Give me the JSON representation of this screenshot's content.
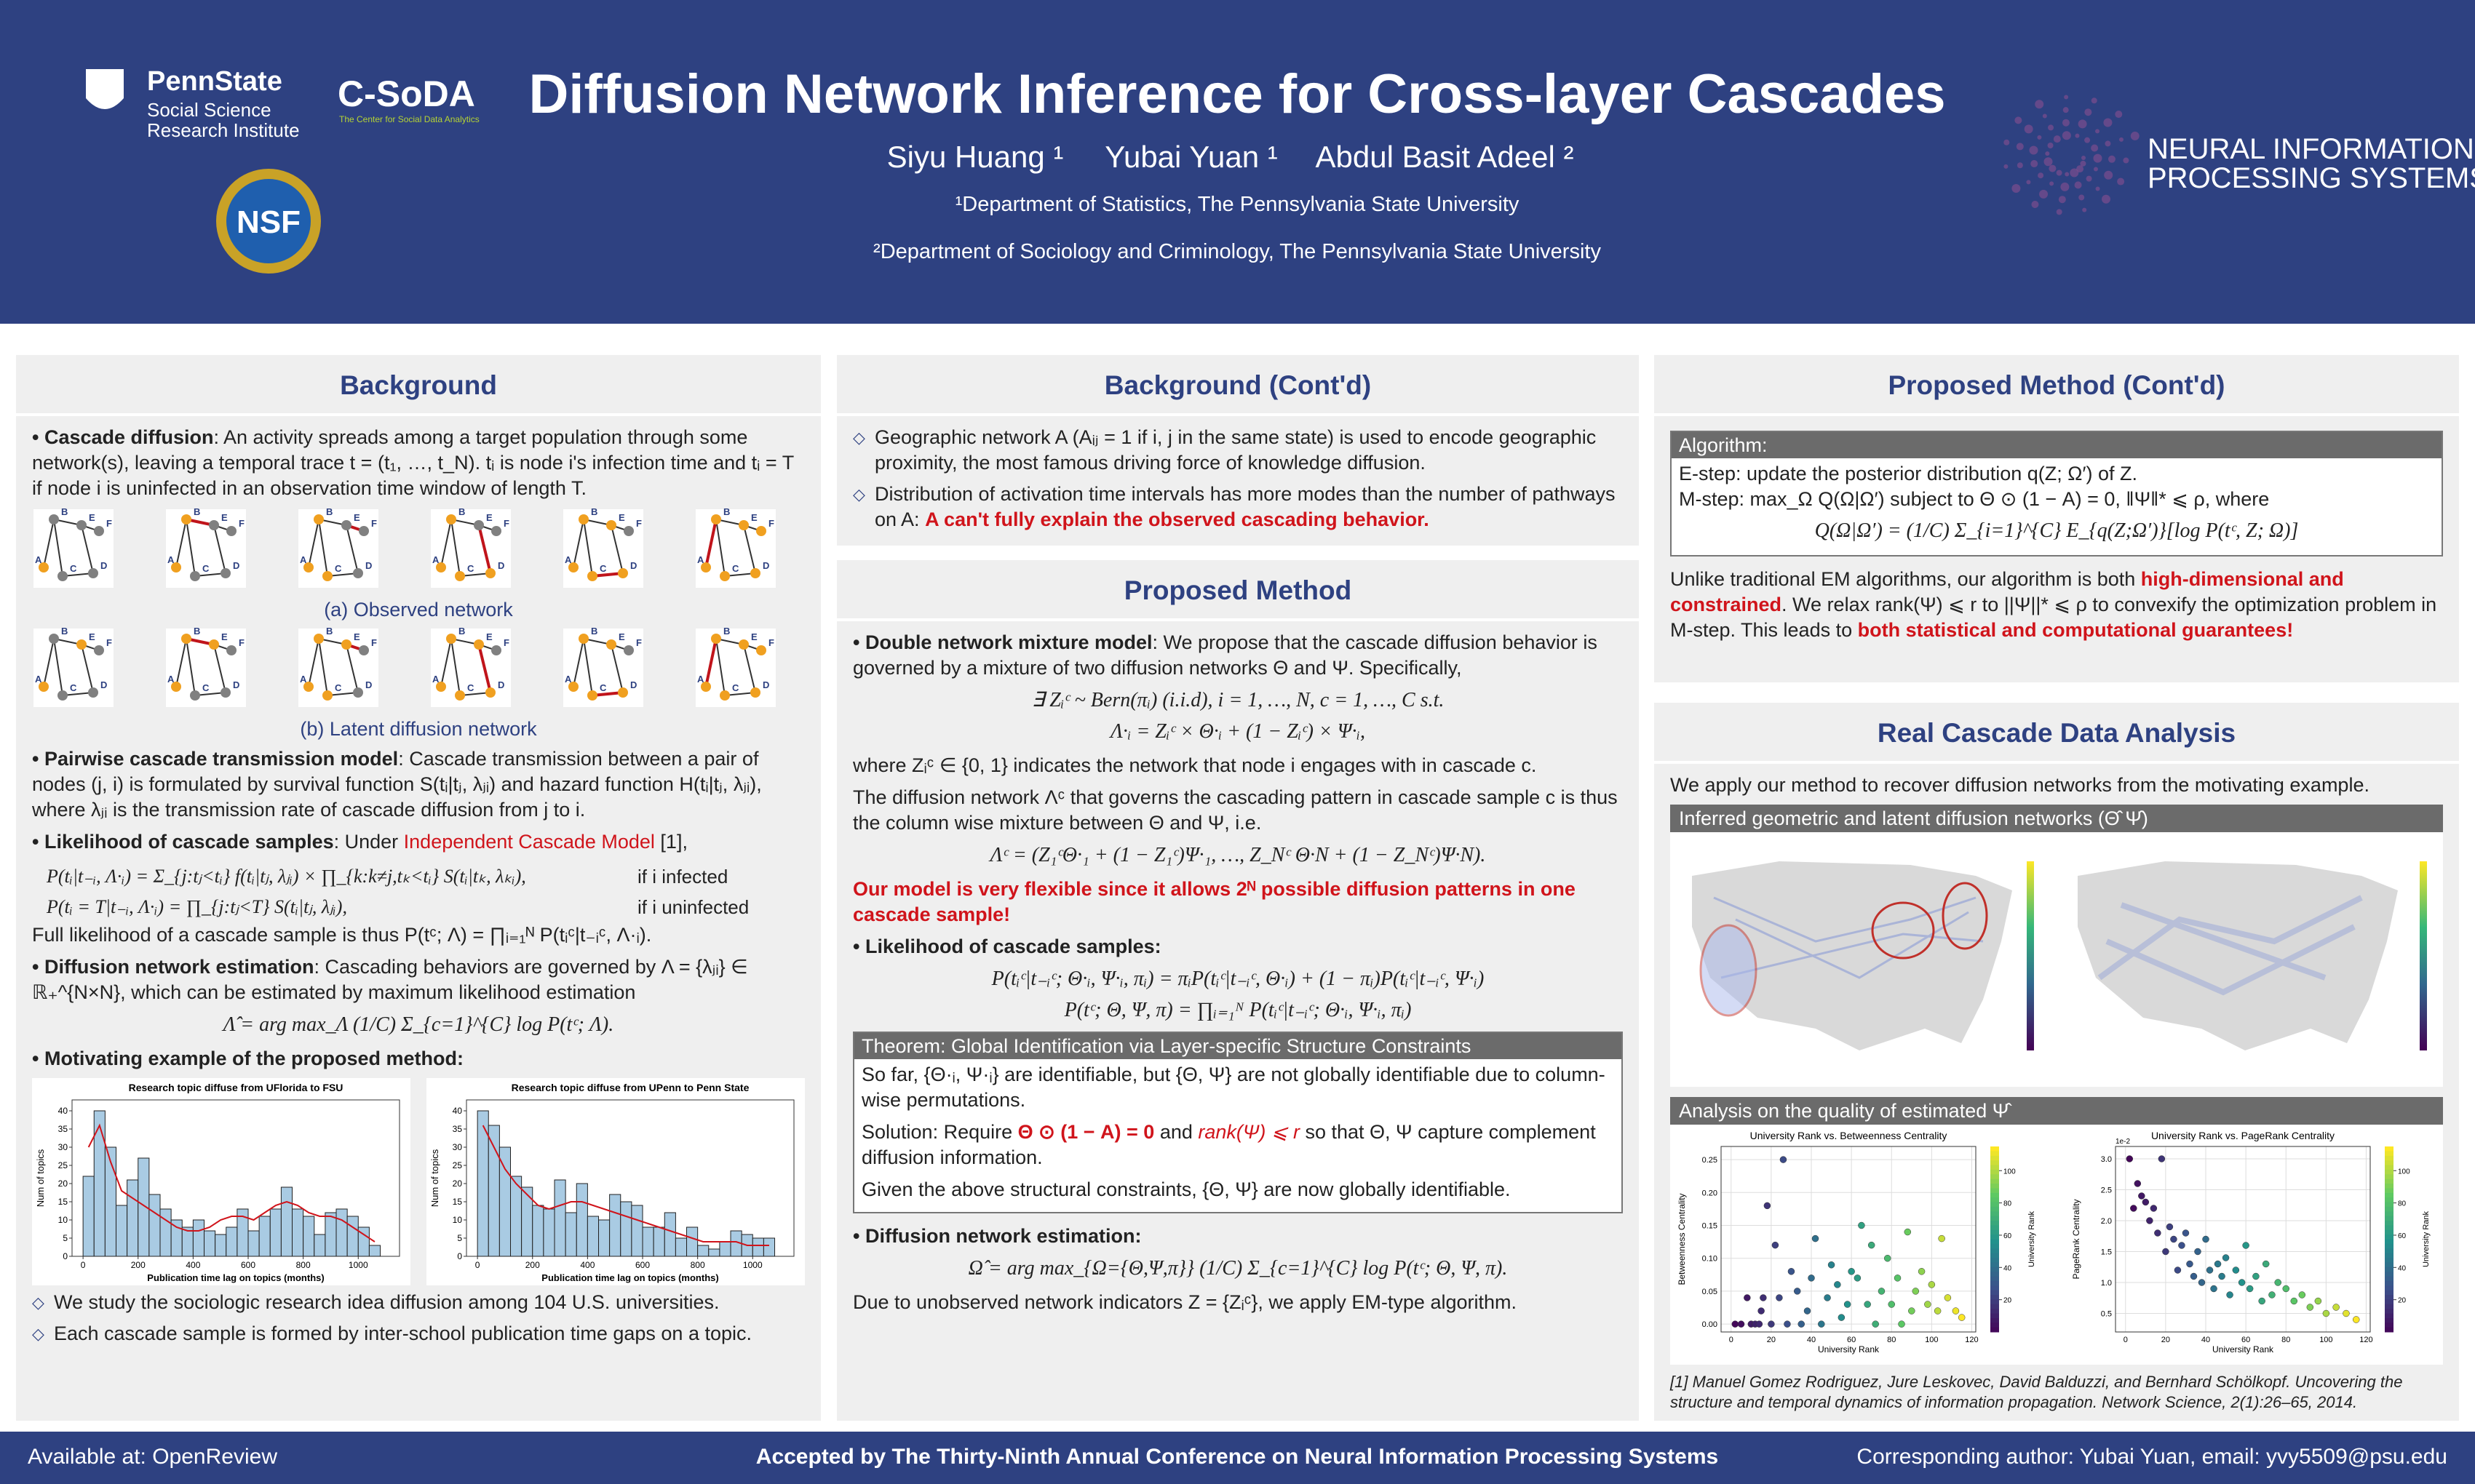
{
  "header": {
    "title": "Diffusion Network Inference for Cross-layer Cascades",
    "authors": [
      "Siyu Huang ¹",
      "Yubai Yuan ¹",
      "Abdul Basit Adeel ²"
    ],
    "affiliations": [
      "¹Department of Statistics, The Pennsylvania State University",
      "²Department of Sociology and Criminology, The Pennsylvania State University"
    ],
    "logos": {
      "pennstate": "PennState",
      "ssri": [
        "Social Science",
        "Research Institute"
      ],
      "csoda": "C-SoDA",
      "csoda_sub": "The Center for Social Data Analytics",
      "nsf": "NSF",
      "neurips": [
        "NEURAL INFORMATION",
        "PROCESSING SYSTEMS"
      ]
    }
  },
  "background": {
    "heading": "Background",
    "p_cascade": {
      "lead": "• Cascade diffusion",
      "text": ": An activity spreads among a target population through some network(s), leaving a temporal trace t = (t₁, …, t_N). tᵢ is node i's infection time and tᵢ = T if node i is uninfected in an observation time window of length T."
    },
    "nodes": [
      "A",
      "B",
      "C",
      "D",
      "E",
      "F"
    ],
    "captions": [
      "(a) Observed network",
      "(b) Latent diffusion network"
    ],
    "p_pairwise": {
      "lead": "• Pairwise cascade transmission model",
      "text": ": Cascade transmission between a pair of nodes (j, i) is formulated by survival function S(tᵢ|tⱼ, λⱼᵢ) and hazard function H(tᵢ|tⱼ, λⱼᵢ), where λⱼᵢ is the transmission rate of cascade diffusion from j to i."
    },
    "p_likelihood": {
      "lead": "• Likelihood of cascade samples",
      "text": ": Under ",
      "red": "Independent Cascade Model",
      "cite": " [1],"
    },
    "eq_likelihood": [
      {
        "lhs": "P(tᵢ|t₋ᵢ, Λ·ᵢ) = Σ_{j:tⱼ<tᵢ} f(tᵢ|tⱼ, λⱼᵢ) × ∏_{k:k≠j,tₖ<tᵢ} S(tᵢ|tₖ, λₖᵢ),",
        "cond": "if i infected"
      },
      {
        "lhs": "P(tᵢ = T|t₋ᵢ, Λ·ᵢ) = ∏_{j:tⱼ<T} S(tᵢ|tⱼ, λⱼᵢ),",
        "cond": "if i uninfected"
      }
    ],
    "p_full": "Full likelihood of a cascade sample is thus P(tᶜ; Λ) = ∏ᵢ₌₁ᴺ P(tᵢᶜ|t₋ᵢᶜ, Λ·ᵢ).",
    "p_estimation": {
      "lead": "• Diffusion network estimation",
      "text": ": Cascading behaviors are governed by Λ = {λⱼᵢ} ∈ ℝ₊^{N×N}, which can be estimated by maximum likelihood estimation"
    },
    "eq_mle": "Λ̂ = arg max_Λ (1/C) Σ_{c=1}^{C} log P(tᶜ; Λ).",
    "p_motivating": "• Motivating example of the proposed method:",
    "figures": [
      {
        "title": "Research topic diffuse from UFlorida to FSU",
        "xlabel": "Publication time lag on topics (months)",
        "ylabel": "Num of topics",
        "bins": [
          0,
          40,
          80,
          120,
          160,
          200,
          240,
          280,
          320,
          360,
          400,
          440,
          480,
          520,
          560,
          600,
          640,
          680,
          720,
          760,
          800,
          840,
          880,
          920,
          960,
          1000,
          1040,
          1080
        ],
        "counts": [
          22,
          40,
          30,
          14,
          21,
          27,
          17,
          13,
          10,
          8,
          10,
          7,
          6,
          8,
          13,
          7,
          11,
          13,
          19,
          13,
          11,
          6,
          12,
          13,
          11,
          8,
          3
        ],
        "smooth": [
          30,
          36,
          26,
          18,
          16,
          14,
          12,
          10,
          8,
          7,
          7,
          8,
          10,
          11,
          11,
          10,
          12,
          14,
          15,
          14,
          12,
          11,
          11,
          10,
          8,
          6,
          4
        ],
        "xlim": [
          -40,
          1150
        ],
        "ylim": [
          0,
          43
        ],
        "xticks": [
          0,
          200,
          400,
          600,
          800,
          1000
        ],
        "yticks": [
          0,
          5,
          10,
          15,
          20,
          25,
          30,
          35,
          40
        ]
      },
      {
        "title": "Research topic diffuse from UPenn to Penn State",
        "xlabel": "Publication time lag on topics (months)",
        "ylabel": "Num of topics",
        "bins": [
          0,
          40,
          80,
          120,
          160,
          200,
          240,
          280,
          320,
          360,
          400,
          440,
          480,
          520,
          560,
          600,
          640,
          680,
          720,
          760,
          800,
          840,
          880,
          920,
          960,
          1000,
          1040,
          1080
        ],
        "counts": [
          40,
          36,
          30,
          22,
          19,
          14,
          13,
          21,
          12,
          20,
          11,
          10,
          17,
          15,
          14,
          8,
          8,
          12,
          5,
          8,
          3,
          2,
          4,
          7,
          6,
          5,
          5
        ],
        "smooth": [
          36,
          30,
          24,
          20,
          17,
          14,
          13,
          14,
          15,
          15,
          14,
          13,
          12,
          11,
          10,
          9,
          8,
          7,
          6,
          5,
          4,
          4,
          4,
          4,
          3,
          3,
          3
        ],
        "xlim": [
          -40,
          1150
        ],
        "ylim": [
          0,
          43
        ],
        "xticks": [
          0,
          200,
          400,
          600,
          800,
          1000
        ],
        "yticks": [
          0,
          5,
          10,
          15,
          20,
          25,
          30,
          35,
          40
        ]
      }
    ],
    "bullets": [
      "We study the sociologic research idea diffusion among 104 U.S. universities.",
      "Each cascade sample is formed by inter-school publication time gaps on a topic."
    ]
  },
  "background2": {
    "heading": "Background (Cont'd)",
    "b0": "Geographic network A (Aᵢⱼ = 1 if i, j in the same state) is used to encode geographic proximity, the most famous driving force of knowledge diffusion.",
    "b1": {
      "text": "Distribution of activation time intervals has more modes than the number of pathways on A: ",
      "red": "A can't fully explain the observed cascading behavior."
    }
  },
  "method": {
    "heading": "Proposed Method",
    "p_mixture": {
      "lead": "• Double network mixture model",
      "text": ": We propose that the cascade diffusion behavior is governed by a mixture of two diffusion networks Θ and Ψ. Specifically,"
    },
    "eq_mixture": [
      "∃ Zᵢᶜ ~ Bern(πᵢ) (i.i.d), i = 1, …, N, c = 1, …, C s.t.",
      "Λ·ᵢ = Zᵢᶜ × Θ·ᵢ + (1 − Zᵢᶜ) × Ψ·ᵢ,"
    ],
    "p_where": "where Zᵢᶜ ∈ {0, 1} indicates the network that node i engages with in cascade c.",
    "p_network": "The diffusion network Λᶜ that governs the cascading pattern in cascade sample c is thus the column wise mixture between Θ and Ψ, i.e.",
    "eq_network": "Λᶜ = (Z₁ᶜΘ·₁ + (1 − Z₁ᶜ)Ψ·₁, …, Z_Nᶜ Θ·N + (1 − Z_Nᶜ)Ψ·N).",
    "p_flexible": "Our model is very flexible since it allows 2ᴺ possible diffusion patterns in one cascade sample!",
    "p_likelihood": "• Likelihood of cascade samples:",
    "eq_likelihood": [
      "P(tᵢᶜ|t₋ᵢᶜ; Θ·ᵢ, Ψ·ᵢ, πᵢ) = πᵢP(tᵢᶜ|t₋ᵢᶜ, Θ·ᵢ) + (1 − πᵢ)P(tᵢᶜ|t₋ᵢᶜ, Ψ·ᵢ)",
      "P(tᶜ; Θ, Ψ, π) = ∏ᵢ₌₁ᴺ P(tᵢᶜ|t₋ᵢᶜ; Θ·ᵢ, Ψ·ᵢ, πᵢ)"
    ],
    "theorem": {
      "title": "Theorem: Global Identification via Layer-specific Structure Constraints",
      "l0": "So far, {Θ·ᵢ, Ψ·ᵢ} are identifiable, but {Θ, Ψ} are not globally identifiable due to column-wise permutations.",
      "l1": {
        "a": "Solution: Require ",
        "red1": "Θ ⊙ (1 − A) = 0",
        "b": " and ",
        "red2": "rank(Ψ) ⩽ r",
        "c": " so that Θ, Ψ capture complement diffusion information."
      },
      "l2": "Given the above structural constraints, {Θ, Ψ} are now globally identifiable."
    },
    "p_estimation": "• Diffusion network estimation:",
    "eq_estimation": "Ω̂ = arg max_{Ω={Θ,Ψ,π}} (1/C) Σ_{c=1}^{C} log P(tᶜ; Θ, Ψ, π).",
    "p_em": "Due to unobserved network indicators Z = {Zᵢᶜ}, we apply EM-type algorithm."
  },
  "method2": {
    "heading": "Proposed Method (Cont'd)",
    "algorithm": {
      "title": "Algorithm:",
      "estep": "E-step: update the posterior distribution q(Z; Ω′) of Z.",
      "mstep": "M-step: max_Ω Q(Ω|Ω′) subject to Θ ⊙ (1 − A) = 0, ‖Ψ‖* ⩽ ρ, where",
      "eq": "Q(Ω|Ω′) = (1/C) Σ_{i=1}^{C} E_{q(Z;Ω′)}[log P(tᶜ, Z; Ω)]"
    },
    "p": {
      "a": "Unlike traditional EM algorithms, our algorithm is both ",
      "red1": "high-dimensional and constrained",
      "b": ". We relax rank(Ψ) ⩽ r to ||Ψ||* ⩽ ρ to convexify the optimization problem in M-step. This leads to ",
      "red2": "both statistical and computational guarantees!"
    }
  },
  "analysis": {
    "heading": "Real Cascade Data Analysis",
    "intro": "We apply our method to recover diffusion networks from the motivating example.",
    "sub_maps": "Inferred geometric and latent diffusion networks (Θ̂ Ψ̂)",
    "sub_quality": "Analysis on the quality of estimated Ψ̂",
    "scatters": [
      {
        "title": "University Rank vs. Betweenness Centrality",
        "xlabel": "University Rank",
        "ylabel": "Betweenness Centrality",
        "cbar_label": "University Rank",
        "x": [
          2,
          5,
          8,
          10,
          12,
          14,
          15,
          16,
          18,
          20,
          22,
          24,
          26,
          28,
          30,
          33,
          35,
          38,
          40,
          42,
          45,
          48,
          50,
          53,
          55,
          58,
          60,
          63,
          65,
          68,
          70,
          72,
          75,
          78,
          80,
          83,
          85,
          88,
          90,
          92,
          95,
          98,
          100,
          103,
          105,
          108,
          112,
          115
        ],
        "y": [
          0.0,
          0.0,
          0.04,
          0.0,
          0.0,
          0.0,
          0.02,
          0.04,
          0.18,
          0.0,
          0.12,
          0.04,
          0.25,
          0.0,
          0.08,
          0.05,
          0.0,
          0.02,
          0.07,
          0.13,
          0.0,
          0.04,
          0.09,
          0.06,
          0.01,
          0.03,
          0.08,
          0.07,
          0.15,
          0.03,
          0.12,
          0.0,
          0.05,
          0.1,
          0.03,
          0.07,
          0.0,
          0.14,
          0.02,
          0.05,
          0.08,
          0.03,
          0.06,
          0.02,
          0.13,
          0.04,
          0.02,
          0.01
        ],
        "xlim": [
          -5,
          122
        ],
        "ylim": [
          -0.012,
          0.27
        ],
        "xticks": [
          0,
          20,
          40,
          60,
          80,
          100,
          120
        ],
        "yticks": [
          {
            "value": 0,
            "label": "0.00"
          },
          0.05,
          {
            "value": 0.1,
            "label": "0.10"
          },
          0.15,
          {
            "value": 0.2,
            "label": "0.20"
          },
          0.25
        ],
        "cbar_lim": [
          0,
          115
        ],
        "cbar_ticks": [
          20,
          40,
          60,
          80,
          100
        ]
      },
      {
        "title": "University Rank vs. PageRank Centrality",
        "xlabel": "University Rank",
        "ylabel": "PageRank Centrality",
        "cbar_label": "University Rank",
        "offset_label": "1e-2",
        "x": [
          2,
          4,
          6,
          8,
          10,
          12,
          14,
          16,
          18,
          20,
          22,
          24,
          26,
          28,
          30,
          32,
          34,
          36,
          38,
          40,
          42,
          44,
          46,
          48,
          50,
          52,
          55,
          58,
          60,
          62,
          65,
          68,
          70,
          73,
          76,
          80,
          84,
          88,
          92,
          96,
          100,
          105,
          110,
          115
        ],
        "y": [
          3.0,
          2.2,
          2.6,
          2.4,
          2.3,
          2.0,
          2.2,
          1.8,
          3.0,
          1.5,
          1.9,
          1.7,
          1.2,
          1.6,
          1.8,
          1.3,
          1.1,
          1.5,
          1.0,
          1.7,
          1.2,
          0.9,
          1.3,
          1.1,
          1.4,
          0.8,
          1.2,
          1.0,
          1.6,
          0.9,
          1.1,
          0.7,
          1.3,
          0.8,
          1.0,
          0.9,
          0.7,
          0.8,
          0.6,
          0.7,
          0.5,
          0.6,
          0.5,
          0.4
        ],
        "xlim": [
          -5,
          122
        ],
        "ylim": [
          0.2,
          3.2
        ],
        "xticks": [
          0,
          20,
          40,
          60,
          80,
          100,
          120
        ],
        "yticks": [
          0.5,
          {
            "value": 1,
            "label": "1.0"
          },
          1.5,
          {
            "value": 2,
            "label": "2.0"
          },
          2.5,
          {
            "value": 3,
            "label": "3.0"
          }
        ],
        "cbar_lim": [
          0,
          115
        ],
        "cbar_ticks": [
          20,
          40,
          60,
          80,
          100
        ]
      }
    ],
    "reference": "[1] Manuel Gomez Rodriguez, Jure Leskovec, David Balduzzi, and Bernhard Schölkopf. Uncovering the structure and temporal dynamics of information propagation. Network Science, 2(1):26–65, 2014."
  },
  "footer": {
    "left": "Available at: OpenReview",
    "center": "Accepted by The Thirty-Ninth Annual Conference on Neural Information Processing Systems",
    "right": "Corresponding author: Yubai Yuan, email: yvy5509@psu.edu"
  }
}
